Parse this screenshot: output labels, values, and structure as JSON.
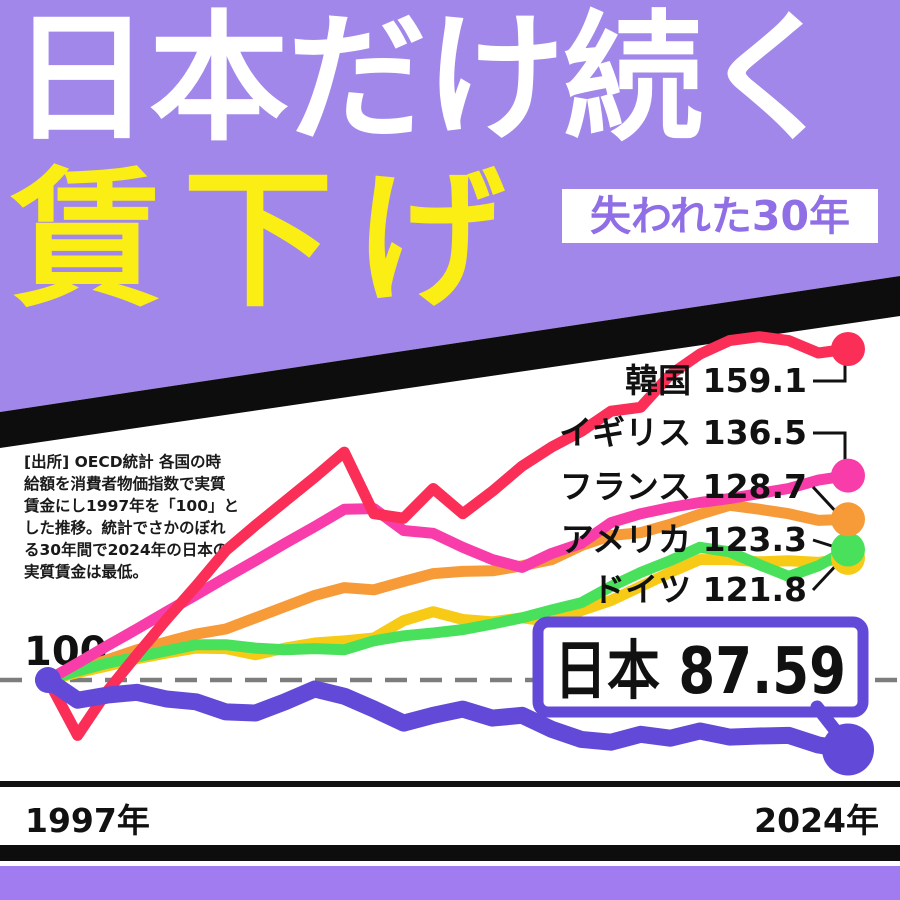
{
  "header": {
    "title_line1": "日本だけ続く",
    "title_line2": "賃下げ",
    "badge": "失われた30年"
  },
  "theme": {
    "header_purple": "#a287ea",
    "badge_text_purple": "#8f6ee6",
    "banner_black": "#0d0d0d",
    "title_white": "#ffffff",
    "title_yellow": "#fbee15",
    "bottom_bar_purple": "#a17bf0",
    "dash_gray": "#7d7d7d",
    "text_black": "#111111",
    "japan_box_border": "#6349d8"
  },
  "source_note": {
    "text": "[出所] OECD統計 各国の時\n給額を消費者物価指数で実質\n賃金にし1997年を「100」と\nした推移。統計でさかのぼれ\nる30年間で2024年の日本の\n実質賃金は最低。"
  },
  "chart_data": {
    "type": "line",
    "x_start_year": 1997,
    "x_end_year": 2024,
    "baseline_label": "100",
    "baseline_value": 100,
    "grid": false,
    "xlabels": {
      "start": "1997年",
      "end": "2024年"
    },
    "series": [
      {
        "id": "korea",
        "name": "韓国",
        "value_label": "159.1",
        "color": "#fa2e57",
        "values": [
          100,
          90.1,
          98.0,
          104.5,
          110.8,
          116.8,
          123.1,
          127.6,
          131.9,
          136.2,
          140.7,
          129.7,
          128.9,
          134.2,
          129.7,
          133.7,
          138.2,
          141.6,
          144.4,
          148.0,
          148.7,
          154.5,
          158.2,
          160.6,
          161.3,
          160.6,
          158.4,
          159.1
        ]
      },
      {
        "id": "uk",
        "name": "イギリス",
        "value_label": "136.5",
        "color": "#f83daa",
        "values": [
          100,
          103.0,
          106.1,
          109.1,
          112.2,
          115.2,
          118.3,
          121.3,
          124.4,
          127.4,
          130.5,
          130.6,
          126.7,
          126.2,
          123.7,
          121.5,
          120.1,
          122.6,
          124.4,
          128.1,
          129.7,
          130.8,
          131.7,
          132.4,
          133.3,
          134.2,
          135.7,
          136.5
        ]
      },
      {
        "id": "france",
        "name": "フランス",
        "value_label": "128.7",
        "color": "#f79a38",
        "values": [
          100,
          101.8,
          103.6,
          105.4,
          106.8,
          108.2,
          109.1,
          111.1,
          113.1,
          115.1,
          116.5,
          116.1,
          117.6,
          119.0,
          119.4,
          119.5,
          120.4,
          121.5,
          124.0,
          125.8,
          126.3,
          127.8,
          129.6,
          131.2,
          130.5,
          129.7,
          128.5,
          128.7
        ]
      },
      {
        "id": "usa",
        "name": "アメリカ",
        "value_label": "123.3",
        "color": "#49e15b",
        "values": [
          100,
          101.6,
          103.0,
          104.1,
          105.2,
          106.3,
          106.3,
          105.7,
          105.4,
          105.6,
          105.4,
          107.0,
          107.9,
          108.4,
          109.0,
          110.0,
          111.1,
          112.5,
          113.8,
          116.7,
          119.2,
          121.3,
          123.7,
          122.9,
          120.6,
          118.5,
          120.4,
          123.3
        ]
      },
      {
        "id": "germany",
        "name": "ドイツ",
        "value_label": "121.8",
        "color": "#f6ca15",
        "values": [
          100,
          101.3,
          102.5,
          103.8,
          104.8,
          105.7,
          105.6,
          104.5,
          105.7,
          106.6,
          107.0,
          107.5,
          110.6,
          112.2,
          110.8,
          110.4,
          111.1,
          110.4,
          112.4,
          114.2,
          116.7,
          119.2,
          121.5,
          121.5,
          121.1,
          121.3,
          121.0,
          121.8
        ]
      },
      {
        "id": "japan",
        "name": "日本",
        "value_label": "87.59",
        "color": "#6349d8",
        "highlight": true,
        "values": [
          100,
          96.4,
          97.3,
          97.8,
          96.6,
          96.1,
          94.3,
          94.1,
          96.1,
          98.4,
          97.1,
          94.8,
          92.3,
          93.7,
          94.8,
          93.2,
          93.7,
          91.2,
          89.4,
          88.9,
          90.3,
          89.6,
          90.9,
          89.8,
          90.0,
          90.1,
          88.4,
          87.59
        ]
      }
    ]
  }
}
